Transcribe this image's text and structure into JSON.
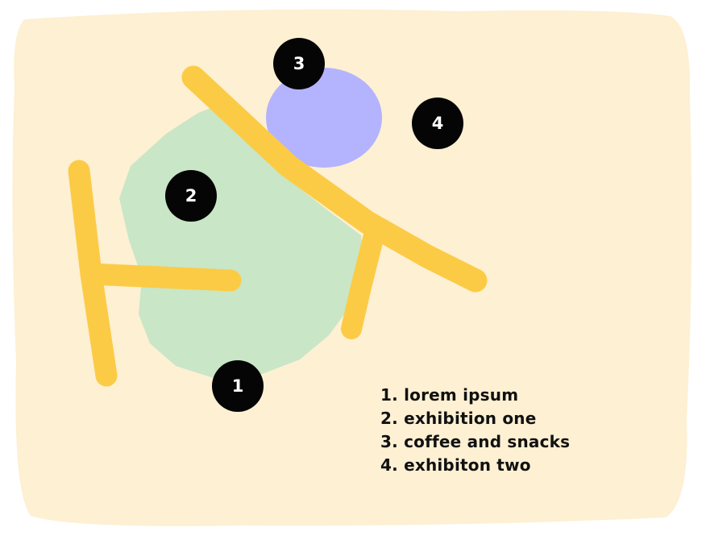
{
  "colors": {
    "paper": "#fdf0d3",
    "paths": "#fccb45",
    "area_exhibition_one": "#c9e6c7",
    "area_coffee_and_snacks": "#b4b3fd",
    "marker_fill": "#050505",
    "marker_text": "#ffffff"
  },
  "markers": [
    {
      "number": "1"
    },
    {
      "number": "2"
    },
    {
      "number": "3"
    },
    {
      "number": "4"
    }
  ],
  "legend": {
    "items": [
      {
        "label": "1. lorem ipsum"
      },
      {
        "label": "2. exhibition one"
      },
      {
        "label": "3. coffee and snacks"
      },
      {
        "label": "4. exhibiton two"
      }
    ]
  }
}
